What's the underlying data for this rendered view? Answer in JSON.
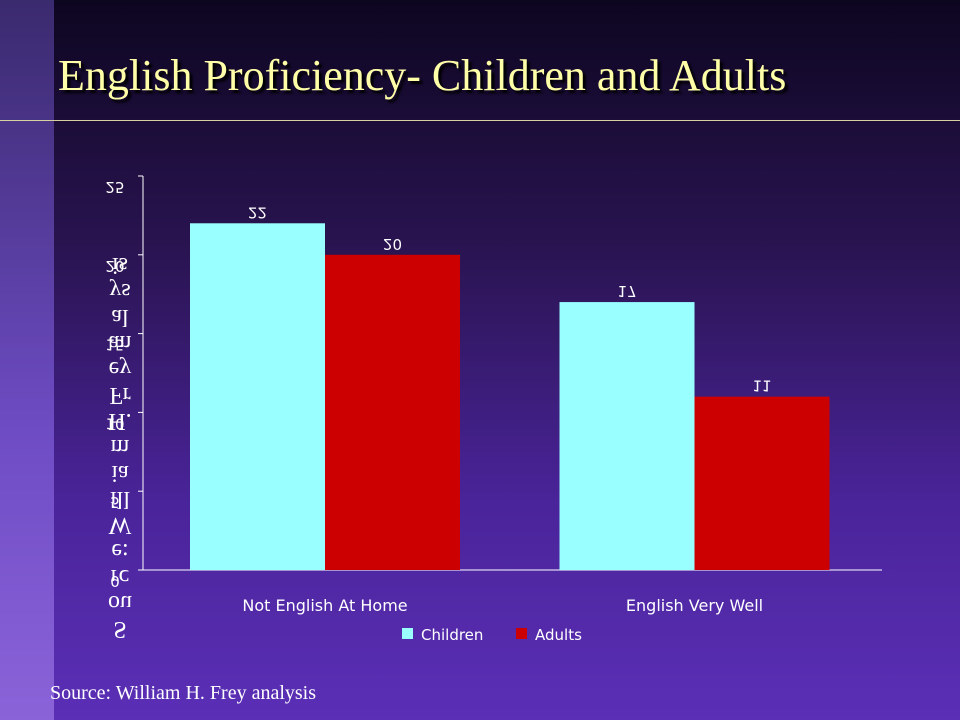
{
  "slide": {
    "title": "English Proficiency- Children and Adults",
    "source": "Source: William H. Frey analysis",
    "mirrored_axis_text": "Source: William H. Frey analysis"
  },
  "colors": {
    "children": "#99ffff",
    "adults": "#cc0000",
    "title": "#ffffa8"
  },
  "chart_data": {
    "type": "bar",
    "categories": [
      "Not English At Home",
      "English Very Well"
    ],
    "series": [
      {
        "name": "Children",
        "values": [
          22,
          17
        ]
      },
      {
        "name": "Adults",
        "values": [
          20,
          11
        ]
      }
    ],
    "ylim": [
      0,
      25
    ],
    "yticks": [
      0,
      5,
      10,
      15,
      20,
      25
    ],
    "data_labels": true,
    "legend": "bottom",
    "grid": false,
    "xlabel": "",
    "ylabel": ""
  }
}
